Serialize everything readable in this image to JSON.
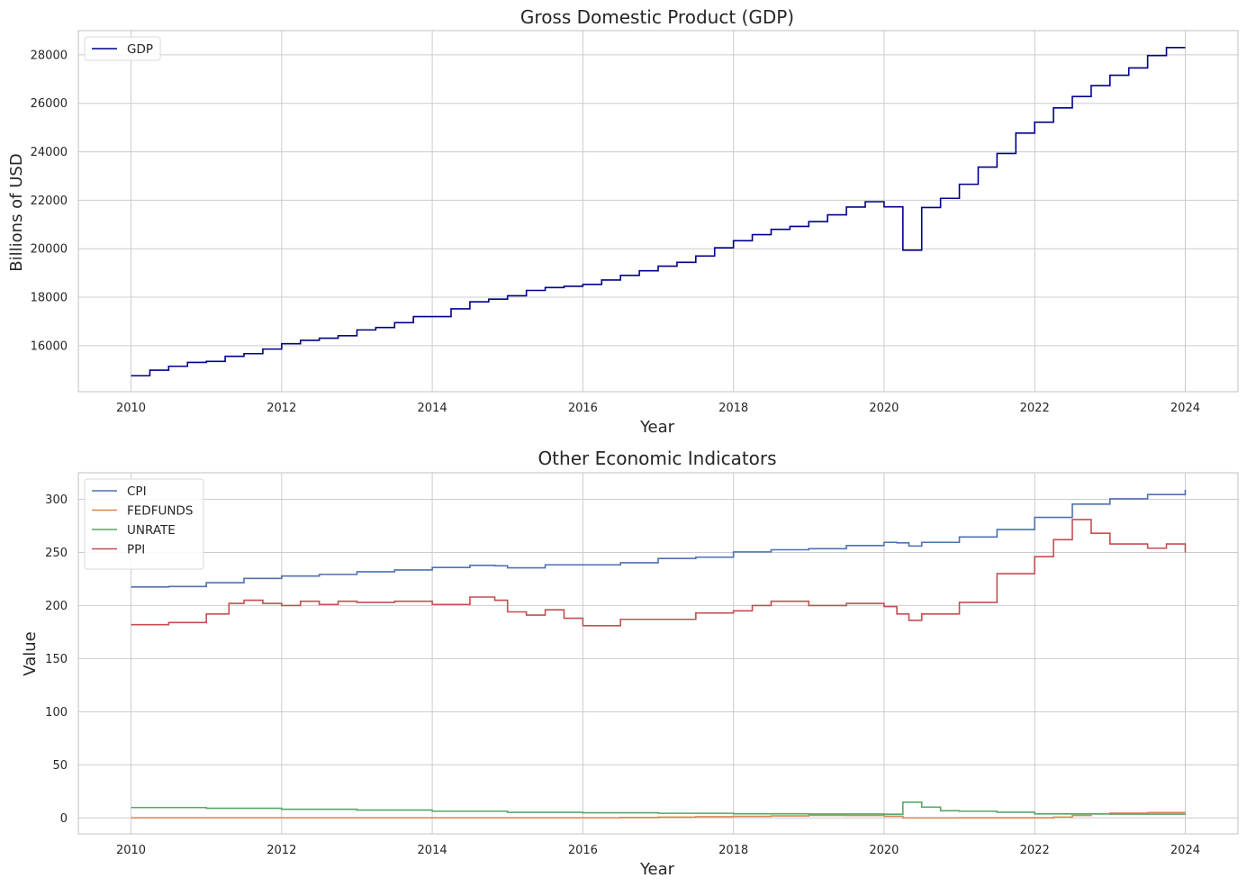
{
  "chart_data": [
    {
      "type": "line",
      "style": "step",
      "title": "Gross Domestic Product (GDP)",
      "xlabel": "Year",
      "ylabel": "Billions of USD",
      "xlim": [
        2009.3,
        2024.7
      ],
      "ylim": [
        14100,
        29000
      ],
      "xticks": [
        2010,
        2012,
        2014,
        2016,
        2018,
        2020,
        2022,
        2024
      ],
      "yticks": [
        16000,
        18000,
        20000,
        22000,
        24000,
        26000,
        28000
      ],
      "grid": true,
      "legend": "upper-left",
      "series": [
        {
          "name": "GDP",
          "color": "#00008b",
          "x": [
            2010,
            2010.25,
            2010.5,
            2010.75,
            2011,
            2011.25,
            2011.5,
            2011.75,
            2012,
            2012.25,
            2012.5,
            2012.75,
            2013,
            2013.25,
            2013.5,
            2013.75,
            2014,
            2014.25,
            2014.5,
            2014.75,
            2015,
            2015.25,
            2015.5,
            2015.75,
            2016,
            2016.25,
            2016.5,
            2016.75,
            2017,
            2017.25,
            2017.5,
            2017.75,
            2018,
            2018.25,
            2018.5,
            2018.75,
            2019,
            2019.25,
            2019.5,
            2019.75,
            2020,
            2020.25,
            2020.5,
            2020.75,
            2021,
            2021.25,
            2021.5,
            2021.75,
            2022,
            2022.25,
            2022.5,
            2022.75,
            2023,
            2023.25,
            2023.5,
            2023.75,
            2024
          ],
          "values": [
            14760,
            14990,
            15150,
            15310,
            15350,
            15560,
            15670,
            15860,
            16080,
            16220,
            16310,
            16410,
            16650,
            16750,
            16950,
            17200,
            17200,
            17520,
            17810,
            17920,
            18060,
            18280,
            18400,
            18450,
            18530,
            18710,
            18900,
            19090,
            19280,
            19440,
            19700,
            20040,
            20330,
            20580,
            20800,
            20920,
            21120,
            21400,
            21720,
            21940,
            21730,
            19940,
            21700,
            22080,
            22660,
            23370,
            23930,
            24770,
            25220,
            25810,
            26280,
            26730,
            27160,
            27460,
            27970,
            28300,
            28300
          ]
        }
      ]
    },
    {
      "type": "line",
      "style": "step",
      "title": "Other Economic Indicators",
      "xlabel": "Year",
      "ylabel": "Value",
      "xlim": [
        2009.3,
        2024.7
      ],
      "ylim": [
        -15,
        325
      ],
      "xticks": [
        2010,
        2012,
        2014,
        2016,
        2018,
        2020,
        2022,
        2024
      ],
      "yticks": [
        0,
        50,
        100,
        150,
        200,
        250,
        300
      ],
      "grid": true,
      "legend": "upper-left",
      "series": [
        {
          "name": "CPI",
          "color": "#4c72b0",
          "x": [
            2010,
            2010.5,
            2011,
            2011.5,
            2012,
            2012.5,
            2013,
            2013.5,
            2014,
            2014.5,
            2014.83,
            2015,
            2015.5,
            2016,
            2016.5,
            2017,
            2017.5,
            2018,
            2018.5,
            2019,
            2019.5,
            2020,
            2020.17,
            2020.33,
            2020.5,
            2021,
            2021.5,
            2022,
            2022.5,
            2023,
            2023.5,
            2024
          ],
          "values": [
            217.5,
            217.9,
            221.5,
            225.5,
            227.8,
            229.3,
            231.8,
            233.5,
            235.8,
            237.8,
            237.4,
            235.5,
            238.3,
            238.3,
            240.3,
            244.3,
            245.5,
            250.5,
            252.5,
            253.5,
            256.5,
            259.5,
            259,
            256,
            259.5,
            264.5,
            271.5,
            283,
            295.5,
            300.5,
            304.5,
            309
          ]
        },
        {
          "name": "FEDFUNDS",
          "color": "#dd8452",
          "x": [
            2010,
            2015.9,
            2016.5,
            2017,
            2017.5,
            2018,
            2018.5,
            2019,
            2019.5,
            2020,
            2020.25,
            2021,
            2022,
            2022.25,
            2022.5,
            2022.75,
            2023,
            2023.5,
            2024
          ],
          "values": [
            0.15,
            0.15,
            0.4,
            0.7,
            1.2,
            1.45,
            1.9,
            2.4,
            2.3,
            1.6,
            0.05,
            0.08,
            0.1,
            0.8,
            2.3,
            3.8,
            4.6,
            5.1,
            5.3
          ]
        },
        {
          "name": "UNRATE",
          "color": "#55a868",
          "x": [
            2010,
            2011,
            2012,
            2013,
            2014,
            2015,
            2016,
            2017,
            2018,
            2019,
            2020,
            2020.25,
            2020.5,
            2020.75,
            2021,
            2021.5,
            2022,
            2023,
            2024
          ],
          "values": [
            9.8,
            9.1,
            8.2,
            7.4,
            6.3,
            5.3,
            4.9,
            4.4,
            3.9,
            3.7,
            3.5,
            14.8,
            10.2,
            6.8,
            6.3,
            5.4,
            3.8,
            3.6,
            3.7
          ]
        },
        {
          "name": "PPI",
          "color": "#c44e52",
          "x": [
            2010,
            2010.5,
            2011,
            2011.3,
            2011.5,
            2011.75,
            2012,
            2012.25,
            2012.5,
            2012.75,
            2013,
            2013.5,
            2014,
            2014.5,
            2014.83,
            2015,
            2015.25,
            2015.5,
            2015.75,
            2016,
            2016.5,
            2017,
            2017.5,
            2018,
            2018.25,
            2018.5,
            2019,
            2019.5,
            2020,
            2020.17,
            2020.33,
            2020.5,
            2021,
            2021.5,
            2022,
            2022.25,
            2022.5,
            2022.75,
            2023,
            2023.5,
            2023.75,
            2024
          ],
          "values": [
            182,
            184,
            192,
            202,
            205,
            202,
            200,
            204,
            201,
            204,
            203,
            204,
            201,
            208,
            205,
            194,
            191,
            196,
            188,
            181,
            187,
            187,
            193,
            195,
            200,
            204,
            200,
            202,
            199,
            192,
            186,
            192,
            203,
            230,
            246,
            262,
            281,
            268,
            258,
            254,
            258,
            250
          ]
        }
      ]
    }
  ]
}
